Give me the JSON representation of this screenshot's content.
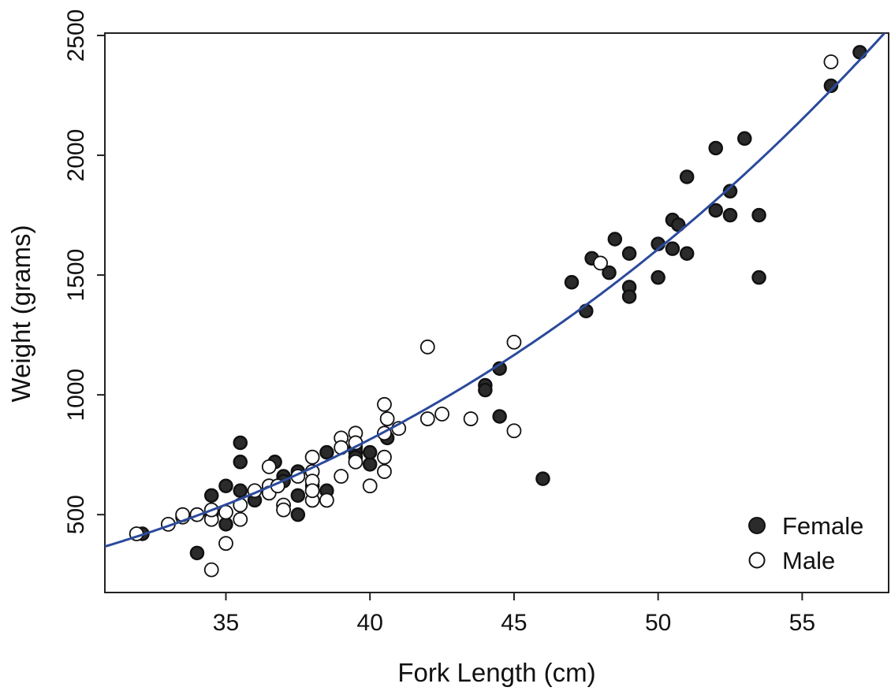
{
  "chart_data": {
    "type": "scatter",
    "title": "",
    "xlabel": "Fork Length (cm)",
    "ylabel": "Weight (grams)",
    "xlim": [
      30.8,
      58.0
    ],
    "ylim": [
      175,
      2510
    ],
    "xticks": [
      35,
      40,
      45,
      50,
      55
    ],
    "yticks": [
      500,
      1000,
      1500,
      2000,
      2500
    ],
    "grid": false,
    "legend_position": "bottom-right",
    "fit_curve": {
      "type": "power",
      "description": "fitted length-weight curve",
      "a": 0.01058,
      "b": 3.05,
      "color": "#2b4a9c"
    },
    "series": [
      {
        "name": "Female",
        "marker": "filled-circle",
        "color": "#2b2b2b",
        "points": [
          [
            32.1,
            420
          ],
          [
            34,
            340
          ],
          [
            34.5,
            580
          ],
          [
            34.5,
            500
          ],
          [
            35,
            620
          ],
          [
            35,
            460
          ],
          [
            35.5,
            800
          ],
          [
            35.5,
            720
          ],
          [
            35.5,
            600
          ],
          [
            36,
            560
          ],
          [
            36.5,
            610
          ],
          [
            36.7,
            720
          ],
          [
            37,
            660
          ],
          [
            37,
            640
          ],
          [
            37.5,
            680
          ],
          [
            37.5,
            580
          ],
          [
            37.5,
            500
          ],
          [
            38,
            620
          ],
          [
            38,
            600
          ],
          [
            38.5,
            760
          ],
          [
            38.5,
            600
          ],
          [
            39.5,
            780
          ],
          [
            39.5,
            760
          ],
          [
            39.5,
            740
          ],
          [
            40,
            710
          ],
          [
            40,
            760
          ],
          [
            40.6,
            820
          ],
          [
            44,
            1040
          ],
          [
            44,
            1020
          ],
          [
            44.5,
            1110
          ],
          [
            44.5,
            910
          ],
          [
            46,
            650
          ],
          [
            47,
            1470
          ],
          [
            47.5,
            1350
          ],
          [
            47.7,
            1570
          ],
          [
            48.3,
            1510
          ],
          [
            48.5,
            1650
          ],
          [
            49,
            1590
          ],
          [
            49,
            1450
          ],
          [
            49,
            1410
          ],
          [
            50,
            1630
          ],
          [
            50,
            1490
          ],
          [
            50.5,
            1730
          ],
          [
            50.5,
            1610
          ],
          [
            50.7,
            1710
          ],
          [
            51,
            1910
          ],
          [
            51,
            1590
          ],
          [
            52,
            2030
          ],
          [
            52,
            1770
          ],
          [
            52.5,
            1850
          ],
          [
            52.5,
            1750
          ],
          [
            53,
            2070
          ],
          [
            53.5,
            1750
          ],
          [
            53.5,
            1490
          ],
          [
            56,
            2290
          ],
          [
            57,
            2430
          ]
        ]
      },
      {
        "name": "Male",
        "marker": "open-circle",
        "color": "#111111",
        "points": [
          [
            31.9,
            420
          ],
          [
            33,
            460
          ],
          [
            33.5,
            490
          ],
          [
            33.5,
            500
          ],
          [
            34,
            500
          ],
          [
            34.5,
            270
          ],
          [
            34.5,
            480
          ],
          [
            34.5,
            520
          ],
          [
            35,
            380
          ],
          [
            35,
            510
          ],
          [
            35.5,
            480
          ],
          [
            35.5,
            540
          ],
          [
            36,
            600
          ],
          [
            36.5,
            700
          ],
          [
            36.5,
            620
          ],
          [
            36.5,
            590
          ],
          [
            36.8,
            620
          ],
          [
            37,
            540
          ],
          [
            37,
            520
          ],
          [
            37.5,
            660
          ],
          [
            38,
            740
          ],
          [
            38,
            680
          ],
          [
            38,
            640
          ],
          [
            38,
            560
          ],
          [
            38,
            600
          ],
          [
            38.5,
            560
          ],
          [
            39,
            820
          ],
          [
            39,
            780
          ],
          [
            39,
            660
          ],
          [
            39.5,
            840
          ],
          [
            39.5,
            800
          ],
          [
            39.5,
            720
          ],
          [
            40,
            620
          ],
          [
            40.5,
            960
          ],
          [
            40.5,
            840
          ],
          [
            40.5,
            740
          ],
          [
            40.5,
            680
          ],
          [
            40.6,
            900
          ],
          [
            41,
            860
          ],
          [
            42,
            1200
          ],
          [
            42,
            900
          ],
          [
            42.5,
            920
          ],
          [
            43.5,
            900
          ],
          [
            45,
            1220
          ],
          [
            45,
            850
          ],
          [
            48,
            1550
          ],
          [
            56,
            2390
          ]
        ]
      }
    ]
  }
}
